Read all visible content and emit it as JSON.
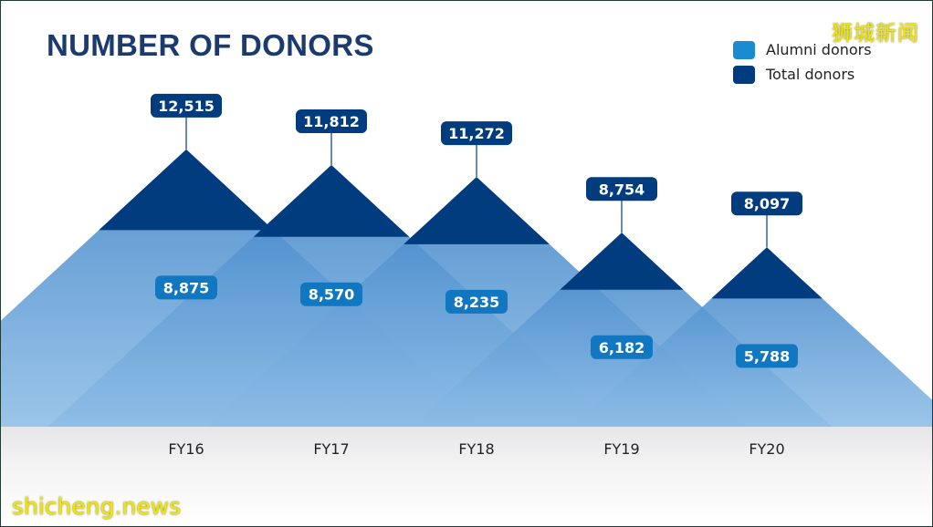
{
  "chart_data": {
    "type": "area",
    "title": "NUMBER OF DONORS",
    "xlabel": "",
    "ylabel": "",
    "categories": [
      "FY16",
      "FY17",
      "FY18",
      "FY19",
      "FY20"
    ],
    "series": [
      {
        "name": "Alumni donors",
        "values": [
          8875,
          8570,
          8235,
          6182,
          5788
        ],
        "labels": [
          "8,875",
          "8,570",
          "8,235",
          "6,182",
          "5,788"
        ]
      },
      {
        "name": "Total donors",
        "values": [
          12515,
          11812,
          11272,
          8754,
          8097
        ],
        "labels": [
          "12,515",
          "11,812",
          "11,272",
          "8,754",
          "8,097"
        ]
      }
    ],
    "grid": false,
    "legend": "top-right"
  },
  "colors": {
    "alumni": "#1a8bd1",
    "total": "#003c7e",
    "title": "#1b3b6f",
    "peak_label": "#003c7e",
    "alumni_label": "#1177c0"
  },
  "watermarks": {
    "top_right": "狮城新闻",
    "bottom_left": "shicheng.news"
  }
}
